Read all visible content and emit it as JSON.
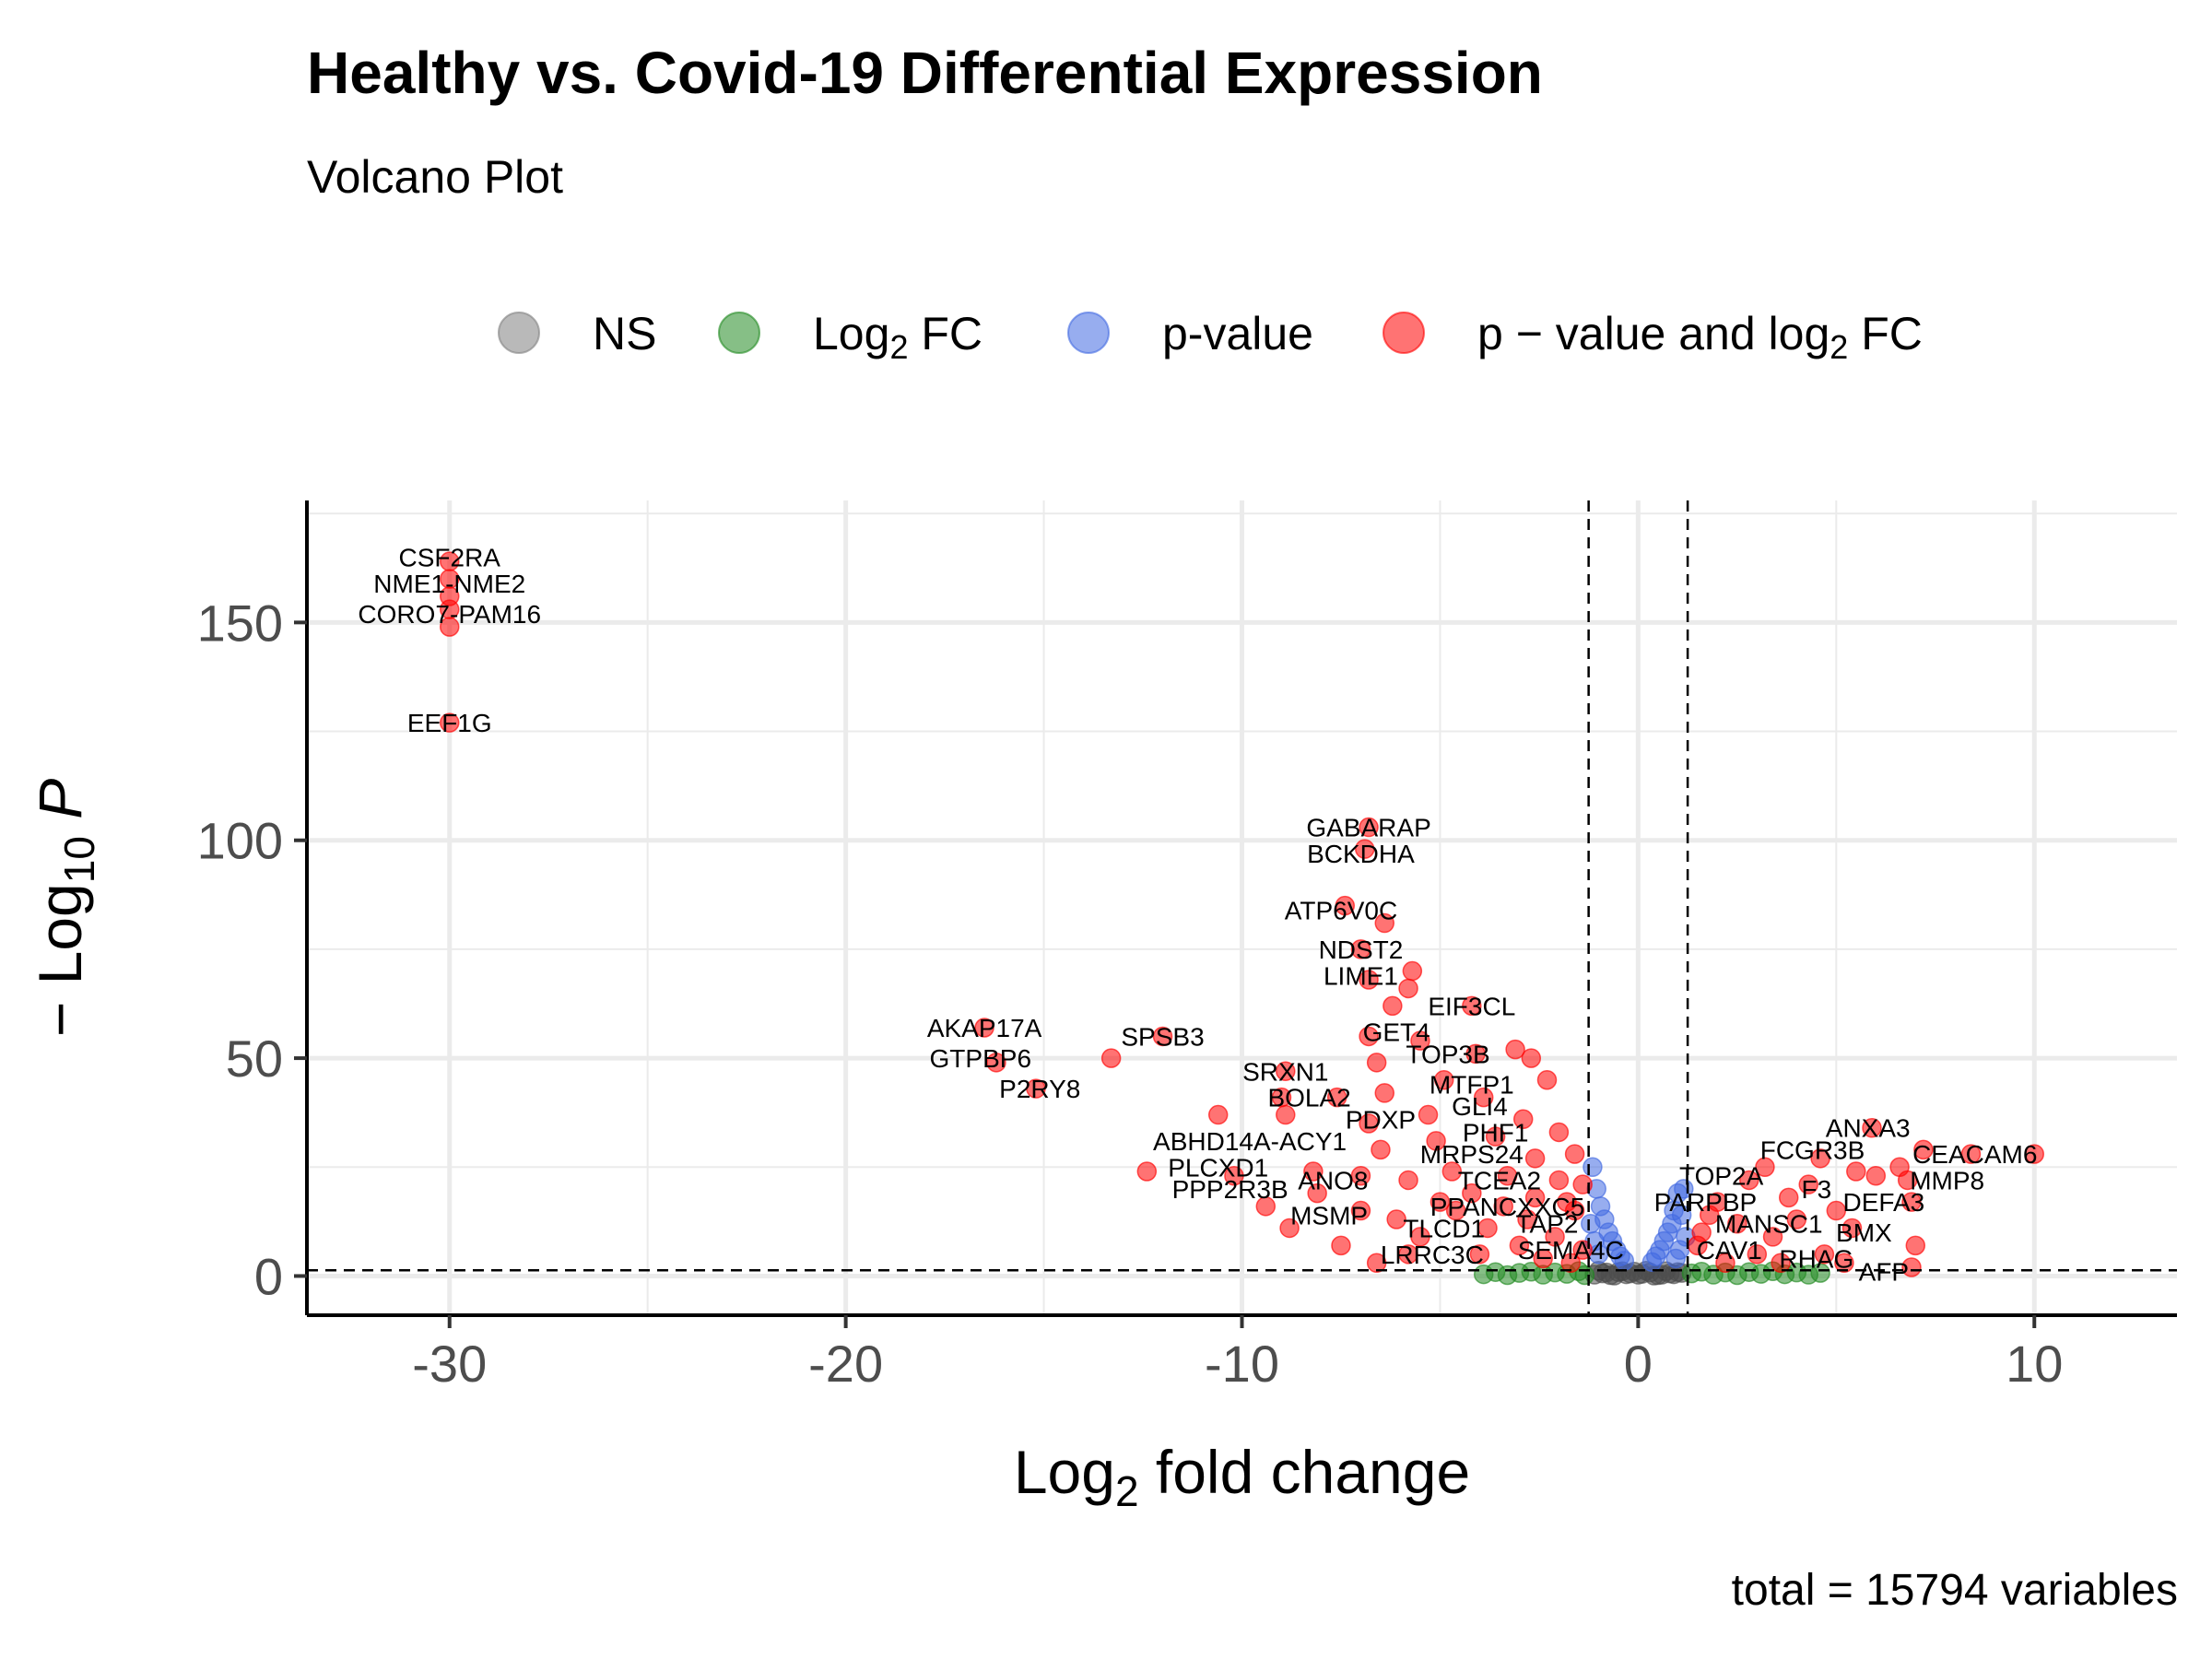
{
  "chart_data": {
    "type": "scatter",
    "title": "Healthy vs. Covid-19 Differential Expression",
    "subtitle": "Volcano Plot",
    "caption": "total = 15794 variables",
    "xlabel": "Log2 fold change",
    "ylabel": "-Log10 P",
    "xlim": [
      -33.6,
      13.6
    ],
    "ylim": [
      -9,
      178
    ],
    "x_ticks": [
      -30,
      -20,
      -10,
      0,
      10
    ],
    "x_tick_labels": [
      "-30",
      "-20",
      "-10",
      "0",
      "10"
    ],
    "y_ticks": [
      0,
      50,
      100,
      150
    ],
    "y_tick_labels": [
      "0",
      "50",
      "100",
      "150"
    ],
    "grid": true,
    "thresholds": {
      "log2fc": [
        -1.25,
        1.25
      ],
      "neg_log10_p": 1.3
    },
    "legend": {
      "position": "top",
      "entries": [
        {
          "key": "ns",
          "prefix": "NS",
          "sub": "",
          "suffix": "",
          "color": "#808080"
        },
        {
          "key": "fc",
          "prefix": "Log",
          "sub": "2",
          "suffix": " FC",
          "color": "#228B22"
        },
        {
          "key": "p",
          "prefix": "p-value",
          "sub": "",
          "suffix": "",
          "color": "#4169E1"
        },
        {
          "key": "both",
          "prefix": "p − value and log",
          "sub": "2",
          "suffix": " FC",
          "color": "#FF0000"
        }
      ]
    },
    "series": [
      {
        "name": "NS",
        "color": "#4d4d4d",
        "points": [
          [
            -1.1,
            0.3
          ],
          [
            -0.9,
            0.6
          ],
          [
            -0.7,
            0.2
          ],
          [
            -0.5,
            0.9
          ],
          [
            -0.3,
            0.4
          ],
          [
            -0.1,
            1.0
          ],
          [
            0.1,
            0.5
          ],
          [
            0.3,
            0.8
          ],
          [
            0.5,
            0.2
          ],
          [
            0.7,
            1.1
          ],
          [
            0.9,
            0.4
          ],
          [
            1.1,
            0.7
          ],
          [
            -1.0,
            1.2
          ],
          [
            -0.6,
            0.1
          ],
          [
            -0.2,
            0.6
          ],
          [
            0.2,
            1.2
          ],
          [
            0.6,
            0.3
          ],
          [
            1.0,
            0.9
          ],
          [
            -0.8,
            0.8
          ],
          [
            0.4,
            0.1
          ],
          [
            0.0,
            0.3
          ],
          [
            -0.4,
            1.1
          ],
          [
            0.8,
            0.6
          ]
        ]
      },
      {
        "name": "Log2 FC",
        "color": "#228B22",
        "points": [
          [
            -3.9,
            0.4
          ],
          [
            -3.6,
            0.9
          ],
          [
            -3.3,
            0.2
          ],
          [
            -3.0,
            0.7
          ],
          [
            -2.7,
            1.0
          ],
          [
            -2.4,
            0.3
          ],
          [
            -2.1,
            0.8
          ],
          [
            -1.8,
            0.5
          ],
          [
            -1.5,
            1.1
          ],
          [
            -1.35,
            0.2
          ],
          [
            1.35,
            0.6
          ],
          [
            1.6,
            1.0
          ],
          [
            1.9,
            0.3
          ],
          [
            2.2,
            0.8
          ],
          [
            2.5,
            0.2
          ],
          [
            2.8,
            0.9
          ],
          [
            3.1,
            0.5
          ],
          [
            3.4,
            1.1
          ],
          [
            3.7,
            0.4
          ],
          [
            4.0,
            0.8
          ],
          [
            4.3,
            0.3
          ],
          [
            4.6,
            0.7
          ]
        ]
      },
      {
        "name": "p-value",
        "color": "#4169E1",
        "points": [
          [
            -1.15,
            25
          ],
          [
            -1.05,
            20
          ],
          [
            -0.95,
            16
          ],
          [
            -0.85,
            13
          ],
          [
            -0.75,
            10
          ],
          [
            -0.65,
            8
          ],
          [
            -0.55,
            6
          ],
          [
            -0.45,
            4.5
          ],
          [
            -0.35,
            3.5
          ],
          [
            -1.2,
            12
          ],
          [
            -1.1,
            8
          ],
          [
            -1.0,
            5
          ],
          [
            1.15,
            20
          ],
          [
            1.0,
            19
          ],
          [
            0.9,
            15
          ],
          [
            0.85,
            12
          ],
          [
            0.75,
            10
          ],
          [
            0.65,
            8
          ],
          [
            0.55,
            6
          ],
          [
            0.45,
            4.5
          ],
          [
            0.35,
            3.2
          ],
          [
            1.1,
            14
          ],
          [
            1.2,
            9
          ],
          [
            1.05,
            6
          ],
          [
            0.95,
            4
          ]
        ]
      },
      {
        "name": "p − value and log2 FC",
        "color": "#FF0000",
        "points": [
          [
            -30,
            164
          ],
          [
            -30,
            160
          ],
          [
            -30,
            156
          ],
          [
            -30,
            153
          ],
          [
            -30,
            149
          ],
          [
            -30,
            127
          ],
          [
            -6.8,
            103
          ],
          [
            -6.9,
            98
          ],
          [
            -7.4,
            85
          ],
          [
            -6.4,
            81
          ],
          [
            -7.0,
            75
          ],
          [
            -5.7,
            70
          ],
          [
            -6.8,
            68
          ],
          [
            -5.8,
            66
          ],
          [
            -6.2,
            62
          ],
          [
            -4.2,
            62
          ],
          [
            -16.5,
            57
          ],
          [
            -16.2,
            49
          ],
          [
            -15.2,
            43
          ],
          [
            -13.3,
            50
          ],
          [
            -12.0,
            55
          ],
          [
            -6.8,
            55
          ],
          [
            -5.5,
            54
          ],
          [
            -4.1,
            51
          ],
          [
            -2.7,
            50
          ],
          [
            -6.6,
            49
          ],
          [
            -3.1,
            52
          ],
          [
            -8.9,
            47
          ],
          [
            -9.0,
            41
          ],
          [
            -7.6,
            41
          ],
          [
            -6.4,
            42
          ],
          [
            -4.9,
            45
          ],
          [
            -2.3,
            45
          ],
          [
            -3.9,
            41
          ],
          [
            -10.6,
            37
          ],
          [
            -8.9,
            37
          ],
          [
            -6.8,
            35
          ],
          [
            -5.3,
            37
          ],
          [
            -2.9,
            36
          ],
          [
            -2.0,
            33
          ],
          [
            -6.5,
            29
          ],
          [
            -5.1,
            31
          ],
          [
            -3.6,
            32
          ],
          [
            -1.6,
            28
          ],
          [
            -2.6,
            27
          ],
          [
            -12.4,
            24
          ],
          [
            -10.2,
            23
          ],
          [
            -8.2,
            24
          ],
          [
            -7.0,
            23
          ],
          [
            -5.8,
            22
          ],
          [
            -4.7,
            24
          ],
          [
            -3.3,
            23
          ],
          [
            -2.0,
            22
          ],
          [
            -1.4,
            21
          ],
          [
            -8.8,
            11
          ],
          [
            -7.5,
            7
          ],
          [
            -6.6,
            3
          ],
          [
            -6.1,
            13
          ],
          [
            -5.5,
            9
          ],
          [
            -4.6,
            15
          ],
          [
            -3.8,
            11
          ],
          [
            -2.8,
            13
          ],
          [
            -2.1,
            9
          ],
          [
            -1.6,
            15
          ],
          [
            -1.4,
            6
          ],
          [
            -5.0,
            17
          ],
          [
            -4.2,
            19
          ],
          [
            -3.4,
            16
          ],
          [
            -2.6,
            18
          ],
          [
            -1.8,
            17
          ],
          [
            -3.0,
            7
          ],
          [
            -2.4,
            4
          ],
          [
            -4.0,
            5
          ],
          [
            -1.7,
            3
          ],
          [
            -5.8,
            5
          ],
          [
            -9.4,
            16
          ],
          [
            -8.1,
            19
          ],
          [
            -7.0,
            15
          ],
          [
            5.9,
            34
          ],
          [
            7.2,
            29
          ],
          [
            4.6,
            27
          ],
          [
            8.4,
            28
          ],
          [
            10.0,
            28
          ],
          [
            6.6,
            25
          ],
          [
            5.5,
            24
          ],
          [
            3.2,
            25
          ],
          [
            6.0,
            23
          ],
          [
            6.8,
            22
          ],
          [
            2.8,
            22
          ],
          [
            3.8,
            18
          ],
          [
            4.3,
            21
          ],
          [
            6.9,
            17
          ],
          [
            2.0,
            17
          ],
          [
            5.0,
            15
          ],
          [
            4.0,
            13
          ],
          [
            2.5,
            12
          ],
          [
            3.4,
            9
          ],
          [
            5.4,
            11
          ],
          [
            1.6,
            10
          ],
          [
            1.5,
            7
          ],
          [
            3.0,
            5
          ],
          [
            4.7,
            5
          ],
          [
            7.0,
            7
          ],
          [
            5.2,
            3
          ],
          [
            6.9,
            2
          ],
          [
            1.8,
            14
          ],
          [
            2.2,
            3
          ],
          [
            3.6,
            3
          ]
        ]
      }
    ],
    "labels": [
      {
        "text": "CSF2RA",
        "x": -30,
        "y": 165
      },
      {
        "text": "NME1-NME2",
        "x": -30,
        "y": 159
      },
      {
        "text": "CORO7-PAM16",
        "x": -30,
        "y": 152
      },
      {
        "text": "EEF1G",
        "x": -30,
        "y": 127
      },
      {
        "text": "GABARAP",
        "x": -6.8,
        "y": 103
      },
      {
        "text": "BCKDHA",
        "x": -7.0,
        "y": 97
      },
      {
        "text": "ATP6V0C",
        "x": -7.5,
        "y": 84
      },
      {
        "text": "NDST2",
        "x": -7.0,
        "y": 75
      },
      {
        "text": "LIME1",
        "x": -7.0,
        "y": 69
      },
      {
        "text": "EIF3CL",
        "x": -4.2,
        "y": 62
      },
      {
        "text": "AKAP17A",
        "x": -16.5,
        "y": 57
      },
      {
        "text": "SPSB3",
        "x": -12.0,
        "y": 55
      },
      {
        "text": "GET4",
        "x": -6.1,
        "y": 56
      },
      {
        "text": "GTPBP6",
        "x": -16.6,
        "y": 50
      },
      {
        "text": "TOP3B",
        "x": -4.8,
        "y": 51
      },
      {
        "text": "SRXN1",
        "x": -8.9,
        "y": 47
      },
      {
        "text": "MTFP1",
        "x": -4.2,
        "y": 44
      },
      {
        "text": "P2RY8",
        "x": -15.1,
        "y": 43
      },
      {
        "text": "BOLA2",
        "x": -8.3,
        "y": 41
      },
      {
        "text": "GLI4",
        "x": -4.0,
        "y": 39
      },
      {
        "text": "PDXP",
        "x": -6.5,
        "y": 36
      },
      {
        "text": "PHF1",
        "x": -3.6,
        "y": 33
      },
      {
        "text": "ABHD14A-ACY1",
        "x": -9.8,
        "y": 31
      },
      {
        "text": "MRPS24",
        "x": -4.2,
        "y": 28
      },
      {
        "text": "PLCXD1",
        "x": -10.6,
        "y": 25
      },
      {
        "text": "ANO8",
        "x": -7.7,
        "y": 22
      },
      {
        "text": "TCEA2",
        "x": -3.5,
        "y": 22
      },
      {
        "text": "PPP2R3B",
        "x": -10.3,
        "y": 20
      },
      {
        "text": "PPANCXXC5",
        "x": -3.3,
        "y": 16
      },
      {
        "text": "MSMP",
        "x": -7.8,
        "y": 14
      },
      {
        "text": "TAP2",
        "x": -2.3,
        "y": 12
      },
      {
        "text": "TLCD1",
        "x": -4.9,
        "y": 11
      },
      {
        "text": "LRRC3C",
        "x": -5.2,
        "y": 5
      },
      {
        "text": "SEMA4C",
        "x": -1.7,
        "y": 6
      },
      {
        "text": "ANXA3",
        "x": 5.8,
        "y": 34
      },
      {
        "text": "FCGR3B",
        "x": 4.4,
        "y": 29
      },
      {
        "text": "CEACAM6",
        "x": 8.5,
        "y": 28
      },
      {
        "text": "TOP2A",
        "x": 2.1,
        "y": 23
      },
      {
        "text": "MMP8",
        "x": 7.8,
        "y": 22
      },
      {
        "text": "F3",
        "x": 4.5,
        "y": 20
      },
      {
        "text": "PARPBP",
        "x": 1.7,
        "y": 17
      },
      {
        "text": "DEFA3",
        "x": 6.2,
        "y": 17
      },
      {
        "text": "MANSC1",
        "x": 3.3,
        "y": 12
      },
      {
        "text": "BMX",
        "x": 5.7,
        "y": 10
      },
      {
        "text": "CAV1",
        "x": 2.3,
        "y": 6
      },
      {
        "text": "RHAG",
        "x": 4.5,
        "y": 4
      },
      {
        "text": "AFP",
        "x": 6.2,
        "y": 1
      }
    ]
  }
}
